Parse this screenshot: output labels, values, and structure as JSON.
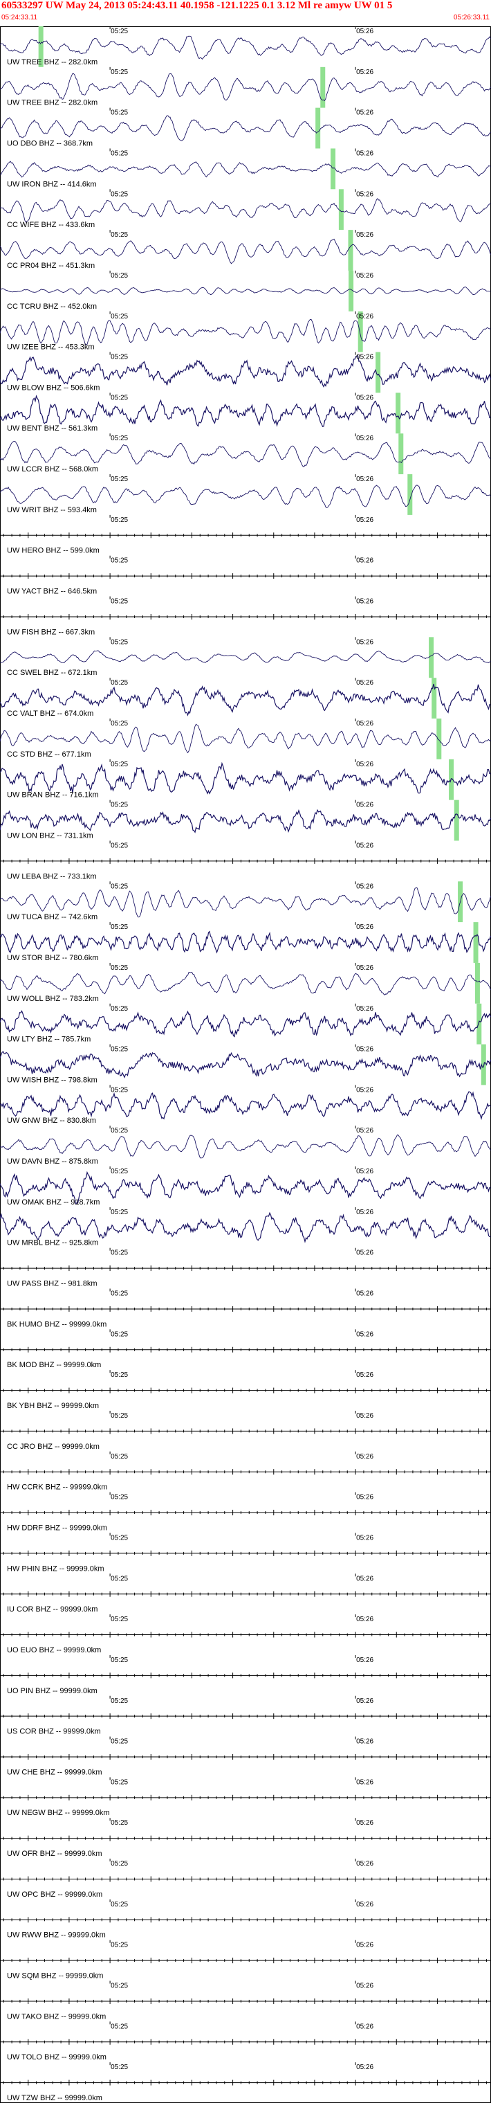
{
  "header": {
    "title": "60533297 UW May 24, 2013 05:24:43.11   40.1958 -121.1225  0.1 3.12 Ml re amyw UW 01   5",
    "start_time": "05:24:33.11",
    "end_time": "05:26:33.11"
  },
  "colors": {
    "header_text": "#ff0000",
    "trace": "#1a1464",
    "pick_marker": "#90e090",
    "axis": "#000000"
  },
  "chart_data": {
    "type": "line",
    "title": "60533297 UW May 24, 2013 05:24:43.11   40.1958 -121.1225  0.1 3.12 Ml re amyw UW 01   5",
    "x_range": [
      "05:24:33.11",
      "05:26:33.11"
    ],
    "x_ticks": [
      "05:25",
      "05:26"
    ],
    "tick_label": [
      "05:25",
      "05:26"
    ],
    "grid": false,
    "series": [
      {
        "name": "UW TREE BHZ -- 282.0km",
        "active": true,
        "amplitude": 0.75,
        "pick_time": "05:24:43.11"
      },
      {
        "name": "UW TREE BHZ -- 282.0km",
        "active": true,
        "amplitude": 0.75,
        "pick_time": "05:25:52.00"
      },
      {
        "name": "UO DBO BHZ -- 368.7km",
        "active": true,
        "amplitude": 0.7,
        "pick_time": "05:25:50.80"
      },
      {
        "name": "UW IRON BHZ -- 414.6km",
        "active": true,
        "amplitude": 0.7,
        "pick_time": "05:25:54.50"
      },
      {
        "name": "CC WIFE BHZ -- 433.6km",
        "active": true,
        "amplitude": 0.7,
        "pick_time": "05:25:56.50"
      },
      {
        "name": "CC PR04 BHZ -- 451.3km",
        "active": true,
        "amplitude": 0.6,
        "pick_time": "05:25:58.80"
      },
      {
        "name": "CC TCRU BHZ -- 452.0km",
        "active": true,
        "amplitude": 0.25,
        "pick_time": "05:25:58.90"
      },
      {
        "name": "UW IZEE BHZ -- 453.3km",
        "active": true,
        "amplitude": 0.75,
        "pick_time": "05:26:01.20"
      },
      {
        "name": "UW BLOW BHZ -- 506.6km",
        "active": true,
        "amplitude": 0.8,
        "pick_time": "05:26:05.50"
      },
      {
        "name": "UW BENT BHZ -- 561.3km",
        "active": true,
        "amplitude": 0.8,
        "pick_time": "05:26:10.40"
      },
      {
        "name": "UW LCCR BHZ -- 568.0km",
        "active": true,
        "amplitude": 0.75,
        "pick_time": "05:26:11.10"
      },
      {
        "name": "UW WRIT BHZ -- 593.4km",
        "active": true,
        "amplitude": 0.75,
        "pick_time": "05:26:13.30"
      },
      {
        "name": "UW HERO BHZ -- 599.0km",
        "active": false
      },
      {
        "name": "UW YACT BHZ -- 646.5km",
        "active": false
      },
      {
        "name": "UW FISH BHZ -- 667.3km",
        "active": false
      },
      {
        "name": "CC SWEL BHZ -- 672.1km",
        "active": true,
        "amplitude": 0.4,
        "pick_time": "05:26:18.50"
      },
      {
        "name": "CC VALT BHZ -- 674.0km",
        "active": true,
        "amplitude": 0.8,
        "pick_time": "05:26:19.20"
      },
      {
        "name": "CC STD BHZ -- 677.1km",
        "active": true,
        "amplitude": 0.75,
        "pick_time": "05:26:20.40"
      },
      {
        "name": "UW BRAN BHZ -- 716.1km",
        "active": true,
        "amplitude": 0.85,
        "pick_time": "05:26:23.40"
      },
      {
        "name": "UW LON BHZ -- 731.1km",
        "active": true,
        "amplitude": 0.8,
        "pick_time": "05:26:24.70"
      },
      {
        "name": "UW LEBA BHZ -- 733.1km",
        "active": false
      },
      {
        "name": "UW TUCA BHZ -- 742.6km",
        "active": true,
        "amplitude": 0.75,
        "pick_time": "05:26:25.60"
      },
      {
        "name": "UW STOR BHZ -- 780.6km",
        "active": true,
        "amplitude": 0.8,
        "pick_time": "05:26:29.40"
      },
      {
        "name": "UW WOLL BHZ -- 783.2km",
        "active": true,
        "amplitude": 0.75,
        "pick_time": "05:26:29.80"
      },
      {
        "name": "UW LTY BHZ -- 785.7km",
        "active": true,
        "amplitude": 0.8,
        "pick_time": "05:26:30.20"
      },
      {
        "name": "UW WISH BHZ -- 798.8km",
        "active": true,
        "amplitude": 0.85,
        "pick_time": "05:26:31.30"
      },
      {
        "name": "UW GNW BHZ -- 830.8km",
        "active": true,
        "amplitude": 0.8
      },
      {
        "name": "UW DAVN BHZ -- 875.8km",
        "active": true,
        "amplitude": 0.7
      },
      {
        "name": "UW OMAK BHZ -- 918.7km",
        "active": true,
        "amplitude": 0.8
      },
      {
        "name": "UW MRBL BHZ -- 925.8km",
        "active": true,
        "amplitude": 0.8
      },
      {
        "name": "UW PASS BHZ -- 981.8km",
        "active": false
      },
      {
        "name": "BK HUMO BHZ -- 99999.0km",
        "active": false
      },
      {
        "name": "BK MOD BHZ -- 99999.0km",
        "active": false
      },
      {
        "name": "BK YBH BHZ -- 99999.0km",
        "active": false
      },
      {
        "name": "CC JRO BHZ -- 99999.0km",
        "active": false
      },
      {
        "name": "HW CCRK BHZ -- 99999.0km",
        "active": false
      },
      {
        "name": "HW DDRF BHZ -- 99999.0km",
        "active": false
      },
      {
        "name": "HW PHIN BHZ -- 99999.0km",
        "active": false
      },
      {
        "name": "IU COR BHZ -- 99999.0km",
        "active": false
      },
      {
        "name": "UO EUO BHZ -- 99999.0km",
        "active": false
      },
      {
        "name": "UO PIN BHZ -- 99999.0km",
        "active": false
      },
      {
        "name": "US COR BHZ -- 99999.0km",
        "active": false
      },
      {
        "name": "UW CHE BHZ -- 99999.0km",
        "active": false
      },
      {
        "name": "UW NEGW BHZ -- 99999.0km",
        "active": false
      },
      {
        "name": "UW OFR BHZ -- 99999.0km",
        "active": false
      },
      {
        "name": "UW OPC BHZ -- 99999.0km",
        "active": false
      },
      {
        "name": "UW RWW BHZ -- 99999.0km",
        "active": false
      },
      {
        "name": "UW SQM BHZ -- 99999.0km",
        "active": false
      },
      {
        "name": "UW TAKO BHZ -- 99999.0km",
        "active": false
      },
      {
        "name": "UW TOLO BHZ -- 99999.0km",
        "active": false
      },
      {
        "name": "UW TZW BHZ -- 99999.0km",
        "active": false
      }
    ]
  }
}
